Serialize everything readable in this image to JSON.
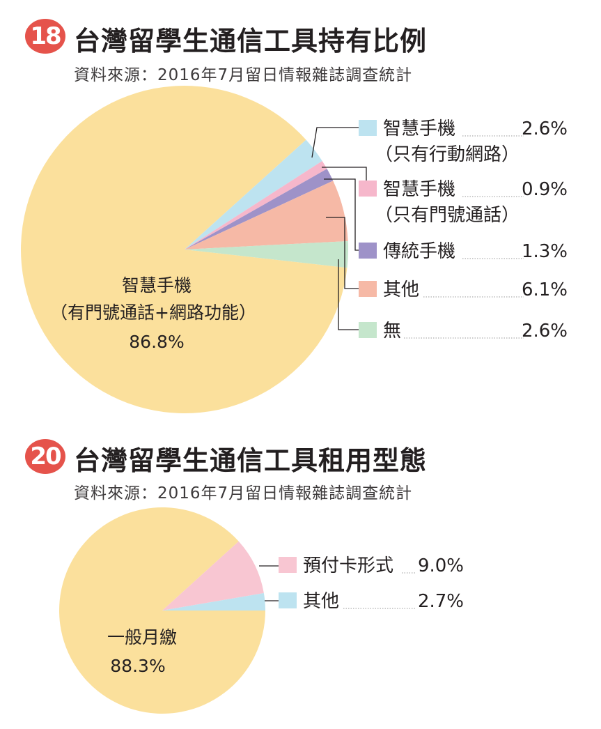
{
  "charts_meta": [
    {
      "badge": "18",
      "title": "台灣留學生通信工具持有比例",
      "source": "資料來源：2016年7月留日情報雜誌調查統計"
    },
    {
      "badge": "20",
      "title": "台灣留學生通信工具租用型態",
      "source": "資料來源：2016年7月留日情報雜誌調查統計"
    }
  ],
  "chart_data": [
    {
      "type": "pie",
      "title": "台灣留學生通信工具持有比例",
      "slices": [
        {
          "label": "智慧手機（有門號通話+網路功能）",
          "value": 86.8,
          "value_label": "86.8%",
          "color": "#fbe09c"
        },
        {
          "label": "智慧手機（只有行動網路）",
          "value": 2.6,
          "value_label": "2.6%",
          "color": "#bde3f0"
        },
        {
          "label": "智慧手機（只有門號通話）",
          "value": 0.9,
          "value_label": "0.9%",
          "color": "#f6b7cb"
        },
        {
          "label": "傳統手機",
          "value": 1.3,
          "value_label": "1.3%",
          "color": "#9e92c8"
        },
        {
          "label": "其他",
          "value": 6.1,
          "value_label": "6.1%",
          "color": "#f6b9a6"
        },
        {
          "label": "無",
          "value": 2.6,
          "value_label": "2.6%",
          "color": "#c5e6cc"
        }
      ],
      "main_label": [
        "智慧手機",
        "（有門號通話+網路功能）",
        "86.8%"
      ],
      "legend": [
        {
          "lines": [
            "智慧手機",
            "（只有行動網路）"
          ],
          "value": "2.6%",
          "color": "#bde3f0"
        },
        {
          "lines": [
            "智慧手機",
            "（只有門號通話）"
          ],
          "value": "0.9%",
          "color": "#f6b7cb"
        },
        {
          "lines": [
            "傳統手機"
          ],
          "value": "1.3%",
          "color": "#9e92c8"
        },
        {
          "lines": [
            "其他"
          ],
          "value": "6.1%",
          "color": "#f6b9a6"
        },
        {
          "lines": [
            "無"
          ],
          "value": "2.6%",
          "color": "#c5e6cc"
        }
      ]
    },
    {
      "type": "pie",
      "title": "台灣留學生通信工具租用型態",
      "slices": [
        {
          "label": "一般月繳",
          "value": 88.3,
          "value_label": "88.3%",
          "color": "#fbe09c"
        },
        {
          "label": "預付卡形式",
          "value": 9.0,
          "value_label": "9.0%",
          "color": "#f8c6d2"
        },
        {
          "label": "其他",
          "value": 2.7,
          "value_label": "2.7%",
          "color": "#bde3f0"
        }
      ],
      "main_label": [
        "一般月繳",
        "88.3%"
      ],
      "legend": [
        {
          "lines": [
            "預付卡形式"
          ],
          "value": "9.0%",
          "color": "#f8c6d2"
        },
        {
          "lines": [
            "其他"
          ],
          "value": "2.7%",
          "color": "#bde3f0"
        }
      ]
    }
  ]
}
